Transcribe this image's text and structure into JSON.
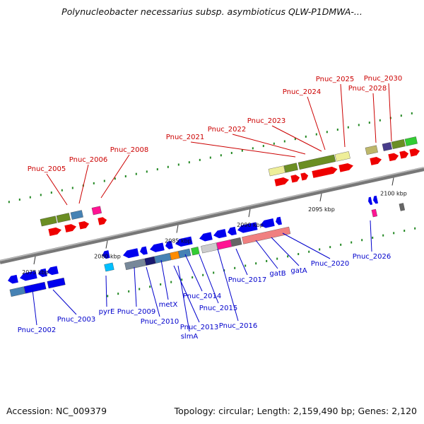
{
  "title": "Polynucleobacter necessarius subsp. asymbioticus QLW-P1DMWA-...",
  "footer": {
    "accession": "Accession: NC_009379",
    "topology": "Topology: circular; Length: 2,159,490 bp; Genes: 2,120"
  },
  "colors": {
    "backbone": "#888888",
    "forward_label": "#cc0000",
    "reverse_label": "#0000cc",
    "tick": "#228822",
    "forward_gene": "#ee0000",
    "reverse_gene": "#0000ee"
  },
  "ruler_ticks": [
    {
      "label": "2075 kbp"
    },
    {
      "label": "2080 kbp"
    },
    {
      "label": "2085 kbp"
    },
    {
      "label": "2090 kbp"
    },
    {
      "label": "2095 kbp"
    },
    {
      "label": "2100 kbp"
    }
  ],
  "forward_labels": [
    "Pnuc_2005",
    "Pnuc_2006",
    "Pnuc_2008",
    "Pnuc_2021",
    "Pnuc_2022",
    "Pnuc_2023",
    "Pnuc_2024",
    "Pnuc_2025",
    "Pnuc_2028",
    "Pnuc_2030"
  ],
  "reverse_labels": [
    "Pnuc_2002",
    "Pnuc_2003",
    "pyrE",
    "Pnuc_2009",
    "Pnuc_2010",
    "metX",
    "Pnuc_2013",
    "slmA",
    "Pnuc_2014",
    "Pnuc_2015",
    "Pnuc_2016",
    "Pnuc_2017",
    "gatB",
    "gatA",
    "Pnuc_2020",
    "Pnuc_2026"
  ]
}
